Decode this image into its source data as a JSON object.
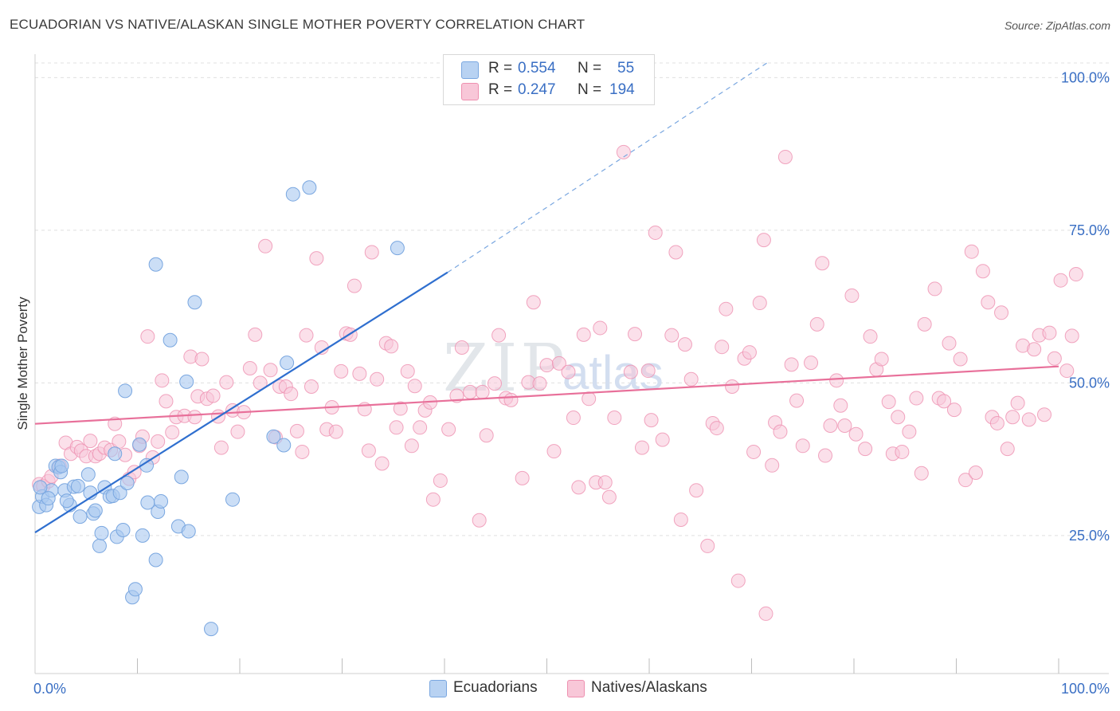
{
  "title": "ECUADORIAN VS NATIVE/ALASKAN SINGLE MOTHER POVERTY CORRELATION CHART",
  "source": "Source: ZipAtlas.com",
  "watermark": "ZIPatlas",
  "legend": {
    "rows": [
      {
        "r_label": "R =",
        "r_value": "0.554",
        "n_label": "N =",
        "n_value": "55",
        "color": "#a9c8f0",
        "border": "#7aa7e0"
      },
      {
        "r_label": "R =",
        "r_value": "0.247",
        "n_label": "N =",
        "n_value": "194",
        "color": "#f8bfd2",
        "border": "#ee90b0"
      }
    ]
  },
  "bottom_legend": [
    {
      "label": "Ecuadorians",
      "color": "#a9c8f0",
      "border": "#7aa7e0"
    },
    {
      "label": "Natives/Alaskans",
      "color": "#f8c7d8",
      "border": "#ee90b0"
    }
  ],
  "chart_data": {
    "type": "scatter",
    "title": "ECUADORIAN VS NATIVE/ALASKAN SINGLE MOTHER POVERTY CORRELATION CHART",
    "xlabel": "",
    "ylabel": "Single Mother Poverty",
    "xlim": [
      0,
      100
    ],
    "ylim": [
      0,
      100
    ],
    "x_tick_labels": {
      "left": "0.0%",
      "right": "100.0%"
    },
    "y_ticks": [
      {
        "value": 25,
        "label": "25.0%"
      },
      {
        "value": 50,
        "label": "50.0%"
      },
      {
        "value": 75,
        "label": "75.0%"
      },
      {
        "value": 100,
        "label": "100.0%"
      }
    ],
    "series": [
      {
        "name": "Ecuadorians",
        "color": "#7aa7e0",
        "fill": "#a9c8f0",
        "trend": {
          "x0": 0,
          "y0": 23.1,
          "x1": 40.3,
          "y1": 65.7,
          "dash_to_x": 71.5,
          "dash_to_y": 100
        },
        "points": [
          [
            0.4,
            27.3
          ],
          [
            0.7,
            29.0
          ],
          [
            1.1,
            27.6
          ],
          [
            1.6,
            30.0
          ],
          [
            2.0,
            34.0
          ],
          [
            2.3,
            33.8
          ],
          [
            2.5,
            33.0
          ],
          [
            2.9,
            30.0
          ],
          [
            3.4,
            27.6
          ],
          [
            3.8,
            30.6
          ],
          [
            4.2,
            30.7
          ],
          [
            4.4,
            25.7
          ],
          [
            5.2,
            32.6
          ],
          [
            5.4,
            29.6
          ],
          [
            5.7,
            26.2
          ],
          [
            5.9,
            26.7
          ],
          [
            6.3,
            20.9
          ],
          [
            6.5,
            23.0
          ],
          [
            6.8,
            30.5
          ],
          [
            7.3,
            29.0
          ],
          [
            7.6,
            29.1
          ],
          [
            7.8,
            36.0
          ],
          [
            8.0,
            22.4
          ],
          [
            8.3,
            29.6
          ],
          [
            8.6,
            23.5
          ],
          [
            8.8,
            46.3
          ],
          [
            9.0,
            31.2
          ],
          [
            9.5,
            12.5
          ],
          [
            9.8,
            13.8
          ],
          [
            10.2,
            37.5
          ],
          [
            10.5,
            22.6
          ],
          [
            10.9,
            34.1
          ],
          [
            11.0,
            28.0
          ],
          [
            11.8,
            18.6
          ],
          [
            12.0,
            26.5
          ],
          [
            12.3,
            28.2
          ],
          [
            11.8,
            67.0
          ],
          [
            13.2,
            54.6
          ],
          [
            14.0,
            24.1
          ],
          [
            14.3,
            32.2
          ],
          [
            14.8,
            47.8
          ],
          [
            15.0,
            23.3
          ],
          [
            15.6,
            60.8
          ],
          [
            17.2,
            7.3
          ],
          [
            19.3,
            28.5
          ],
          [
            23.3,
            38.8
          ],
          [
            24.3,
            37.4
          ],
          [
            24.6,
            50.9
          ],
          [
            25.2,
            78.5
          ],
          [
            26.8,
            79.6
          ],
          [
            35.4,
            69.7
          ],
          [
            0.5,
            30.5
          ],
          [
            1.3,
            28.7
          ],
          [
            2.6,
            34.0
          ],
          [
            3.1,
            28.3
          ]
        ]
      },
      {
        "name": "Natives/Alaskans",
        "color": "#ee90b0",
        "fill": "#f8c7d8",
        "trend": {
          "x0": 0,
          "y0": 40.9,
          "x1": 100,
          "y1": 50.3
        },
        "points": [
          [
            0.4,
            31.0
          ],
          [
            0.8,
            30.7
          ],
          [
            1.3,
            31.5
          ],
          [
            1.6,
            32.3
          ],
          [
            2.4,
            34.0
          ],
          [
            3.0,
            37.8
          ],
          [
            3.5,
            36.0
          ],
          [
            4.1,
            37.1
          ],
          [
            4.5,
            36.5
          ],
          [
            5.0,
            35.6
          ],
          [
            5.4,
            38.1
          ],
          [
            5.9,
            35.6
          ],
          [
            6.3,
            36.0
          ],
          [
            6.8,
            37.0
          ],
          [
            7.4,
            36.6
          ],
          [
            7.8,
            40.9
          ],
          [
            8.2,
            38.0
          ],
          [
            8.8,
            35.8
          ],
          [
            9.2,
            31.9
          ],
          [
            9.7,
            33.0
          ],
          [
            10.2,
            37.3
          ],
          [
            10.5,
            38.8
          ],
          [
            11.0,
            55.2
          ],
          [
            11.5,
            35.4
          ],
          [
            12.0,
            38.0
          ],
          [
            12.4,
            48.0
          ],
          [
            12.8,
            44.6
          ],
          [
            13.4,
            39.5
          ],
          [
            13.8,
            42.0
          ],
          [
            14.6,
            42.2
          ],
          [
            15.2,
            51.9
          ],
          [
            15.6,
            42.0
          ],
          [
            15.9,
            45.4
          ],
          [
            16.3,
            51.5
          ],
          [
            16.8,
            45.0
          ],
          [
            17.4,
            45.5
          ],
          [
            17.9,
            42.1
          ],
          [
            18.2,
            37.0
          ],
          [
            18.7,
            47.7
          ],
          [
            19.3,
            43.1
          ],
          [
            19.8,
            39.6
          ],
          [
            20.4,
            42.8
          ],
          [
            21.0,
            50.0
          ],
          [
            21.5,
            55.5
          ],
          [
            22.0,
            47.6
          ],
          [
            22.5,
            70.0
          ],
          [
            23.0,
            49.7
          ],
          [
            23.5,
            38.7
          ],
          [
            23.9,
            47.0
          ],
          [
            24.5,
            47.0
          ],
          [
            25.0,
            45.8
          ],
          [
            25.6,
            39.7
          ],
          [
            26.1,
            36.3
          ],
          [
            26.5,
            55.4
          ],
          [
            27.0,
            47.0
          ],
          [
            27.5,
            68.0
          ],
          [
            28.0,
            53.4
          ],
          [
            28.5,
            40.0
          ],
          [
            29.0,
            43.6
          ],
          [
            29.4,
            39.6
          ],
          [
            29.9,
            49.5
          ],
          [
            30.4,
            55.7
          ],
          [
            30.8,
            55.5
          ],
          [
            31.2,
            63.5
          ],
          [
            31.7,
            49.1
          ],
          [
            32.2,
            43.3
          ],
          [
            32.6,
            36.5
          ],
          [
            32.9,
            69.0
          ],
          [
            33.4,
            48.2
          ],
          [
            33.9,
            34.4
          ],
          [
            34.3,
            54.1
          ],
          [
            34.8,
            53.6
          ],
          [
            35.3,
            40.3
          ],
          [
            35.7,
            43.4
          ],
          [
            36.4,
            49.5
          ],
          [
            36.8,
            37.3
          ],
          [
            37.1,
            47.1
          ],
          [
            37.6,
            40.3
          ],
          [
            38.1,
            43.1
          ],
          [
            38.6,
            44.4
          ],
          [
            38.9,
            28.5
          ],
          [
            39.6,
            31.6
          ],
          [
            40.4,
            40.0
          ],
          [
            41.2,
            45.5
          ],
          [
            41.7,
            53.4
          ],
          [
            42.5,
            46.1
          ],
          [
            43.4,
            25.1
          ],
          [
            43.7,
            46.1
          ],
          [
            44.1,
            39.0
          ],
          [
            44.9,
            47.5
          ],
          [
            45.3,
            55.4
          ],
          [
            46.0,
            45.1
          ],
          [
            46.5,
            44.8
          ],
          [
            47.6,
            32.0
          ],
          [
            48.2,
            47.7
          ],
          [
            48.7,
            60.8
          ],
          [
            49.3,
            47.5
          ],
          [
            50.0,
            50.5
          ],
          [
            50.7,
            36.4
          ],
          [
            51.2,
            50.8
          ],
          [
            52.1,
            49.4
          ],
          [
            52.6,
            41.9
          ],
          [
            53.1,
            30.5
          ],
          [
            53.6,
            55.5
          ],
          [
            54.1,
            45.0
          ],
          [
            54.8,
            31.3
          ],
          [
            55.2,
            56.6
          ],
          [
            55.7,
            31.3
          ],
          [
            56.1,
            28.9
          ],
          [
            56.6,
            41.9
          ],
          [
            57.5,
            85.4
          ],
          [
            58.2,
            49.4
          ],
          [
            58.6,
            55.6
          ],
          [
            59.3,
            37.0
          ],
          [
            59.9,
            49.6
          ],
          [
            60.2,
            41.5
          ],
          [
            60.6,
            72.2
          ],
          [
            61.3,
            38.3
          ],
          [
            62.2,
            55.4
          ],
          [
            62.6,
            69.0
          ],
          [
            63.1,
            25.2
          ],
          [
            63.5,
            53.9
          ],
          [
            64.1,
            48.2
          ],
          [
            64.6,
            30.0
          ],
          [
            65.7,
            20.9
          ],
          [
            66.2,
            41.0
          ],
          [
            66.6,
            40.2
          ],
          [
            67.1,
            53.5
          ],
          [
            67.5,
            59.7
          ],
          [
            68.1,
            47.0
          ],
          [
            68.7,
            15.2
          ],
          [
            69.3,
            51.6
          ],
          [
            69.8,
            52.6
          ],
          [
            70.2,
            36.3
          ],
          [
            70.8,
            60.7
          ],
          [
            71.2,
            71.0
          ],
          [
            71.4,
            9.8
          ],
          [
            72.0,
            34.1
          ],
          [
            72.3,
            41.1
          ],
          [
            72.8,
            39.6
          ],
          [
            73.3,
            84.6
          ],
          [
            73.9,
            50.6
          ],
          [
            74.4,
            44.7
          ],
          [
            75.0,
            37.3
          ],
          [
            75.8,
            50.9
          ],
          [
            76.4,
            57.2
          ],
          [
            76.9,
            67.2
          ],
          [
            77.2,
            35.7
          ],
          [
            77.7,
            40.6
          ],
          [
            78.3,
            48.0
          ],
          [
            78.7,
            43.9
          ],
          [
            79.1,
            40.6
          ],
          [
            79.8,
            61.9
          ],
          [
            80.2,
            39.2
          ],
          [
            81.1,
            36.8
          ],
          [
            81.6,
            55.2
          ],
          [
            82.2,
            49.8
          ],
          [
            82.7,
            51.5
          ],
          [
            83.4,
            44.5
          ],
          [
            83.8,
            36.0
          ],
          [
            84.3,
            42.0
          ],
          [
            84.7,
            36.3
          ],
          [
            85.4,
            39.6
          ],
          [
            86.1,
            45.1
          ],
          [
            86.6,
            32.8
          ],
          [
            86.9,
            57.2
          ],
          [
            87.9,
            63.0
          ],
          [
            88.3,
            45.1
          ],
          [
            88.8,
            44.6
          ],
          [
            89.3,
            54.1
          ],
          [
            89.8,
            43.2
          ],
          [
            90.4,
            51.5
          ],
          [
            90.9,
            31.7
          ],
          [
            91.5,
            69.1
          ],
          [
            91.9,
            32.9
          ],
          [
            92.6,
            65.9
          ],
          [
            93.1,
            60.8
          ],
          [
            93.5,
            42.0
          ],
          [
            94.0,
            41.0
          ],
          [
            94.4,
            59.1
          ],
          [
            95.0,
            36.8
          ],
          [
            95.5,
            42.0
          ],
          [
            96.0,
            44.3
          ],
          [
            96.5,
            53.7
          ],
          [
            97.1,
            41.6
          ],
          [
            97.6,
            53.1
          ],
          [
            98.1,
            55.4
          ],
          [
            98.6,
            42.4
          ],
          [
            99.1,
            55.8
          ],
          [
            99.6,
            51.6
          ],
          [
            100.2,
            64.4
          ],
          [
            100.8,
            49.6
          ],
          [
            101.3,
            55.3
          ],
          [
            101.7,
            65.4
          ]
        ]
      }
    ]
  }
}
